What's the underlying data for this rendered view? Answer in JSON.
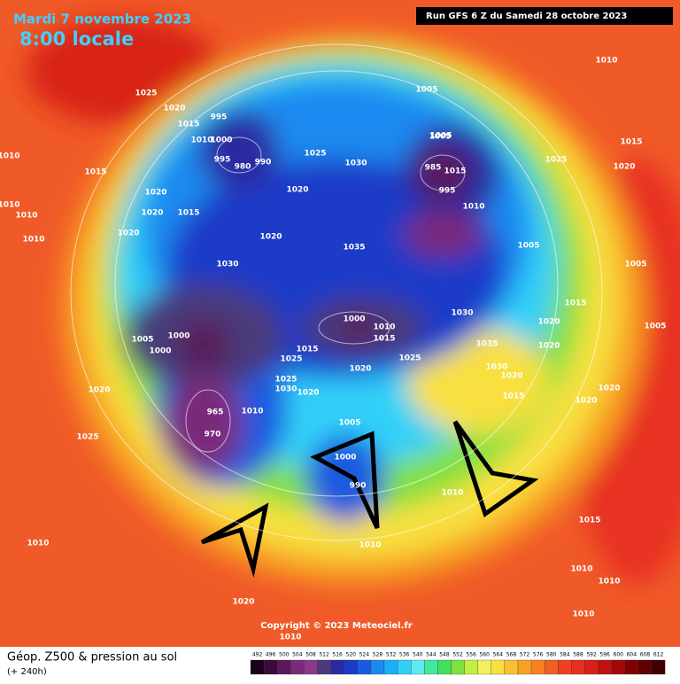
{
  "header": {
    "date": "Mardi 7 novembre 2023",
    "time": "8:00 locale",
    "run": "Run GFS 6 Z du Samedi 28 octobre 2023"
  },
  "footer": {
    "title": "Géop. Z500 & pression au sol",
    "lead": "(+ 240h)",
    "copyright": "Copyright © 2023 Meteociel.fr"
  },
  "scale": {
    "values": [
      492,
      496,
      500,
      504,
      508,
      512,
      516,
      520,
      524,
      528,
      532,
      536,
      540,
      544,
      548,
      552,
      556,
      560,
      564,
      568,
      572,
      576,
      580,
      584,
      588,
      592,
      596,
      600,
      604,
      608,
      612
    ],
    "colors": [
      "#1a001a",
      "#3a0a3a",
      "#5a1a5a",
      "#7a2a7a",
      "#8a3a8a",
      "#4a3a7a",
      "#2a2aa0",
      "#1a3ac8",
      "#1a5ae0",
      "#1a8af0",
      "#1ab0f8",
      "#30d0f8",
      "#60e8f0",
      "#40e8a0",
      "#40e060",
      "#80e040",
      "#c0f040",
      "#f0f060",
      "#f8e040",
      "#f8c030",
      "#f8a020",
      "#f88020",
      "#f06020",
      "#f04020",
      "#e83020",
      "#d82018",
      "#c01010",
      "#a00808",
      "#800000",
      "#600000",
      "#400000"
    ]
  },
  "pressure_labels": [
    "1025",
    "1020",
    "1015",
    "995",
    "1010",
    "1000",
    "995",
    "980",
    "990",
    "1025",
    "1030",
    "1005",
    "985",
    "1015",
    "995",
    "1010",
    "1025",
    "1010",
    "1015",
    "1020",
    "1010",
    "1015",
    "1020",
    "1020",
    "1015",
    "1010",
    "1010",
    "1010",
    "1020",
    "1020",
    "1020",
    "1035",
    "1005",
    "1005",
    "1015",
    "1005",
    "1030",
    "1005",
    "1000",
    "1000",
    "1000",
    "1010",
    "1015",
    "1030",
    "1020",
    "1020",
    "1035",
    "1030",
    "1020",
    "1015",
    "1020",
    "1020",
    "1025",
    "1020",
    "1015",
    "1025",
    "1025",
    "1030",
    "1020",
    "1020",
    "965",
    "1010",
    "970",
    "1025",
    "1005",
    "1000",
    "990",
    "1010",
    "1010",
    "1010",
    "1015",
    "1010",
    "1010",
    "1010",
    "1020",
    "1010",
    "1005",
    "1005"
  ]
}
